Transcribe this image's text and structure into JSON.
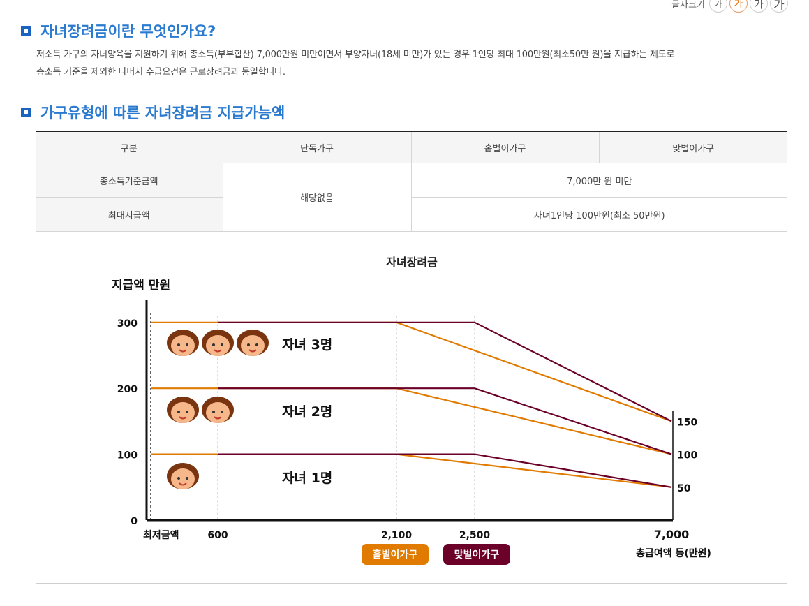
{
  "font_size_control": {
    "label": "글자크기",
    "buttons": [
      "가",
      "가",
      "가",
      "가"
    ]
  },
  "section1": {
    "title": "자녀장려금이란 무엇인가요?",
    "lines": [
      "저소득 가구의 자녀양육을 지원하기 위해 총소득(부부합산) 7,000만원 미만이면서 부양자녀(18세 미만)가 있는 경우 1인당 최대 100만원(최소50만 원)을 지급하는 제도로",
      "총소득 기준을 제외한 나머지 수급요건은 근로장려금과 동일합니다."
    ]
  },
  "section2": {
    "title": "가구유형에 따른 자녀장려금 지급가능액"
  },
  "table": {
    "headers": [
      "구분",
      "단독가구",
      "홑벌이가구",
      "맞벌이가구"
    ],
    "rows": [
      {
        "label": "총소득기준금액",
        "single": "해당없음",
        "value": "7,000만 원 미만"
      },
      {
        "label": "최대지급액",
        "value": "자녀1인당 100만원(최소 50만원)"
      }
    ]
  },
  "chart_data": {
    "type": "line",
    "title": "자녀장려금",
    "ylabel": "지급액 만원",
    "xlabel": "총급여액 등(만원)",
    "x_tick_labels": [
      "최저금액",
      "600",
      "2,100",
      "2,500",
      "7,000"
    ],
    "y_tick_labels": [
      "0",
      "100",
      "200",
      "300"
    ],
    "right_labels": [
      "150",
      "100",
      "50"
    ],
    "ylim": [
      0,
      330
    ],
    "grid": "dashed vertical guides at 600, 2,100 and 2,500",
    "series_styles": {
      "홑벌이가구": "#e07b00",
      "맞벌이가구": "#6b0028"
    },
    "groups": [
      {
        "label": "자녀 3명",
        "children": 3,
        "series": [
          {
            "name": "홑벌이가구",
            "points": [
              [
                0,
                300
              ],
              [
                2100,
                300
              ],
              [
                7000,
                150
              ]
            ]
          },
          {
            "name": "맞벌이가구",
            "points": [
              [
                600,
                300
              ],
              [
                2500,
                300
              ],
              [
                7000,
                150
              ]
            ]
          }
        ]
      },
      {
        "label": "자녀 2명",
        "children": 2,
        "series": [
          {
            "name": "홑벌이가구",
            "points": [
              [
                0,
                200
              ],
              [
                2100,
                200
              ],
              [
                7000,
                100
              ]
            ]
          },
          {
            "name": "맞벌이가구",
            "points": [
              [
                600,
                200
              ],
              [
                2500,
                200
              ],
              [
                7000,
                100
              ]
            ]
          }
        ]
      },
      {
        "label": "자녀 1명",
        "children": 1,
        "series": [
          {
            "name": "홑벌이가구",
            "points": [
              [
                0,
                100
              ],
              [
                2100,
                100
              ],
              [
                7000,
                50
              ]
            ]
          },
          {
            "name": "맞벌이가구",
            "points": [
              [
                600,
                100
              ],
              [
                2500,
                100
              ],
              [
                7000,
                50
              ]
            ]
          }
        ]
      }
    ],
    "legend": [
      {
        "name": "홑벌이가구",
        "color": "#e07b00"
      },
      {
        "name": "맞벌이가구",
        "color": "#6b0028"
      }
    ]
  }
}
